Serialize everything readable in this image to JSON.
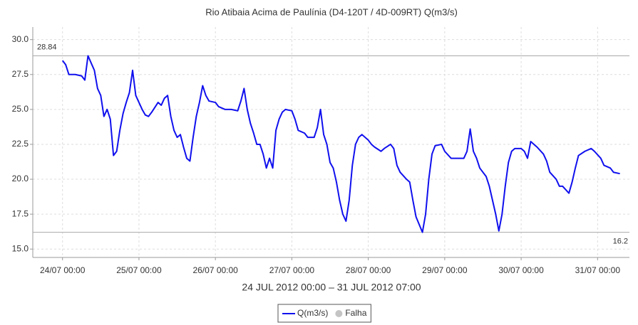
{
  "chart_data": {
    "type": "line",
    "title": "Rio Atibaia Acima de Paulínia (D4-120T / 4D-009RT) Q(m3/s)",
    "x_label": "24 JUL 2012 00:00 – 31 JUL 2012 07:00",
    "x": [
      "2012-07-24T00:00",
      "2012-07-24T01:00",
      "2012-07-24T02:00",
      "2012-07-24T04:00",
      "2012-07-24T06:00",
      "2012-07-24T07:00",
      "2012-07-24T08:00",
      "2012-07-24T10:00",
      "2012-07-24T11:00",
      "2012-07-24T12:00",
      "2012-07-24T13:00",
      "2012-07-24T14:00",
      "2012-07-24T15:00",
      "2012-07-24T16:00",
      "2012-07-24T17:00",
      "2012-07-24T18:00",
      "2012-07-24T19:00",
      "2012-07-24T20:00",
      "2012-07-24T21:00",
      "2012-07-24T22:00",
      "2012-07-24T23:00",
      "2012-07-25T00:00",
      "2012-07-25T01:00",
      "2012-07-25T02:00",
      "2012-07-25T03:00",
      "2012-07-25T04:00",
      "2012-07-25T06:00",
      "2012-07-25T07:00",
      "2012-07-25T08:00",
      "2012-07-25T09:00",
      "2012-07-25T10:00",
      "2012-07-25T11:00",
      "2012-07-25T12:00",
      "2012-07-25T13:00",
      "2012-07-25T14:00",
      "2012-07-25T15:00",
      "2012-07-25T16:00",
      "2012-07-25T17:00",
      "2012-07-25T18:00",
      "2012-07-25T19:00",
      "2012-07-25T20:00",
      "2012-07-25T21:00",
      "2012-07-25T22:00",
      "2012-07-26T00:00",
      "2012-07-26T01:00",
      "2012-07-26T03:00",
      "2012-07-26T05:00",
      "2012-07-26T07:00",
      "2012-07-26T08:00",
      "2012-07-26T09:00",
      "2012-07-26T10:00",
      "2012-07-26T11:00",
      "2012-07-26T12:00",
      "2012-07-26T13:00",
      "2012-07-26T14:00",
      "2012-07-26T15:00",
      "2012-07-26T16:00",
      "2012-07-26T17:00",
      "2012-07-26T18:00",
      "2012-07-26T19:00",
      "2012-07-26T20:00",
      "2012-07-26T21:00",
      "2012-07-26T22:00",
      "2012-07-27T00:00",
      "2012-07-27T01:00",
      "2012-07-27T02:00",
      "2012-07-27T04:00",
      "2012-07-27T05:00",
      "2012-07-27T07:00",
      "2012-07-27T08:00",
      "2012-07-27T09:00",
      "2012-07-27T10:00",
      "2012-07-27T11:00",
      "2012-07-27T12:00",
      "2012-07-27T13:00",
      "2012-07-27T14:00",
      "2012-07-27T15:00",
      "2012-07-27T16:00",
      "2012-07-27T17:00",
      "2012-07-27T18:00",
      "2012-07-27T19:00",
      "2012-07-27T20:00",
      "2012-07-27T21:00",
      "2012-07-27T22:00",
      "2012-07-28T00:00",
      "2012-07-28T01:00",
      "2012-07-28T02:00",
      "2012-07-28T04:00",
      "2012-07-28T05:00",
      "2012-07-28T07:00",
      "2012-07-28T08:00",
      "2012-07-28T09:00",
      "2012-07-28T10:00",
      "2012-07-28T12:00",
      "2012-07-28T13:00",
      "2012-07-28T14:00",
      "2012-07-28T15:00",
      "2012-07-28T17:00",
      "2012-07-28T18:00",
      "2012-07-28T19:00",
      "2012-07-28T20:00",
      "2012-07-28T21:00",
      "2012-07-28T23:00",
      "2012-07-29T00:00",
      "2012-07-29T02:00",
      "2012-07-29T04:00",
      "2012-07-29T06:00",
      "2012-07-29T07:00",
      "2012-07-29T08:00",
      "2012-07-29T09:00",
      "2012-07-29T10:00",
      "2012-07-29T11:00",
      "2012-07-29T13:00",
      "2012-07-29T14:00",
      "2012-07-29T15:00",
      "2012-07-29T16:00",
      "2012-07-29T17:00",
      "2012-07-29T18:00",
      "2012-07-29T19:00",
      "2012-07-29T20:00",
      "2012-07-29T21:00",
      "2012-07-29T22:00",
      "2012-07-30T00:00",
      "2012-07-30T01:00",
      "2012-07-30T02:00",
      "2012-07-30T03:00",
      "2012-07-30T05:00",
      "2012-07-30T07:00",
      "2012-07-30T08:00",
      "2012-07-30T09:00",
      "2012-07-30T11:00",
      "2012-07-30T12:00",
      "2012-07-30T13:00",
      "2012-07-30T15:00",
      "2012-07-30T16:00",
      "2012-07-30T17:00",
      "2012-07-30T18:00",
      "2012-07-30T20:00",
      "2012-07-30T22:00",
      "2012-07-30T23:00",
      "2012-07-31T01:00",
      "2012-07-31T02:00",
      "2012-07-31T04:00",
      "2012-07-31T05:00",
      "2012-07-31T07:00"
    ],
    "series": [
      {
        "name": "Q(m3/s)",
        "color": "#1010ee",
        "values": [
          28.5,
          28.2,
          27.5,
          27.5,
          27.4,
          27.1,
          28.84,
          27.8,
          26.5,
          26.0,
          24.5,
          25.0,
          24.3,
          21.7,
          22.0,
          23.5,
          24.7,
          25.5,
          26.2,
          27.8,
          26.0,
          25.5,
          25.0,
          24.6,
          24.5,
          24.8,
          25.5,
          25.3,
          25.8,
          26.0,
          24.5,
          23.5,
          23.0,
          23.2,
          22.3,
          21.5,
          21.3,
          23.0,
          24.5,
          25.5,
          26.7,
          26.0,
          25.6,
          25.5,
          25.2,
          25.0,
          25.0,
          24.9,
          25.6,
          26.5,
          25.0,
          24.0,
          23.3,
          22.5,
          22.5,
          21.8,
          20.8,
          21.5,
          20.8,
          23.5,
          24.3,
          24.8,
          25.0,
          24.9,
          24.3,
          23.5,
          23.3,
          23.0,
          23.0,
          23.7,
          25.0,
          23.2,
          22.5,
          21.2,
          20.8,
          19.8,
          18.5,
          17.5,
          17.0,
          18.5,
          21.0,
          22.5,
          23.0,
          23.2,
          22.8,
          22.5,
          22.3,
          22.0,
          22.2,
          22.5,
          22.2,
          21.0,
          20.5,
          20.0,
          19.8,
          18.5,
          17.3,
          16.2,
          17.5,
          20.0,
          21.8,
          22.4,
          22.5,
          22.0,
          21.5,
          21.5,
          21.5,
          22.0,
          23.6,
          22.0,
          21.5,
          20.8,
          20.2,
          19.5,
          18.5,
          17.5,
          16.3,
          17.5,
          19.5,
          21.2,
          22.0,
          22.2,
          22.2,
          22.0,
          21.5,
          22.7,
          22.3,
          21.8,
          21.3,
          20.5,
          20.0,
          19.5,
          19.5,
          19.0,
          19.8,
          20.8,
          21.7,
          22.0,
          22.2,
          22.0,
          21.5,
          21.0,
          20.8,
          20.5,
          20.4
        ]
      }
    ],
    "legend_items": [
      {
        "name": "Falha",
        "color": "#c4c4c4"
      }
    ],
    "reference_lines": [
      {
        "value": 28.84,
        "label": "28.84"
      },
      {
        "value": 16.2,
        "label": "16.2"
      }
    ],
    "xlim": [
      "2012-07-23T14:40",
      "2012-07-31T10:00"
    ],
    "xticks": [
      {
        "value": "2012-07-24T00:00",
        "label": "24/07 00:00"
      },
      {
        "value": "2012-07-25T00:00",
        "label": "25/07 00:00"
      },
      {
        "value": "2012-07-26T00:00",
        "label": "26/07 00:00"
      },
      {
        "value": "2012-07-27T00:00",
        "label": "27/07 00:00"
      },
      {
        "value": "2012-07-28T00:00",
        "label": "28/07 00:00"
      },
      {
        "value": "2012-07-29T00:00",
        "label": "29/07 00:00"
      },
      {
        "value": "2012-07-30T00:00",
        "label": "30/07 00:00"
      },
      {
        "value": "2012-07-31T00:00",
        "label": "31/07 00:00"
      }
    ],
    "ylim": [
      14.4,
      30.9
    ],
    "yticks": [
      {
        "value": 15,
        "label": "15.0"
      },
      {
        "value": 17.5,
        "label": "17.5"
      },
      {
        "value": 20,
        "label": "20.0"
      },
      {
        "value": 22.5,
        "label": "22.5"
      },
      {
        "value": 25,
        "label": "25.0"
      },
      {
        "value": 27.5,
        "label": "27.5"
      },
      {
        "value": 30,
        "label": "30.0"
      }
    ],
    "grid": true
  }
}
